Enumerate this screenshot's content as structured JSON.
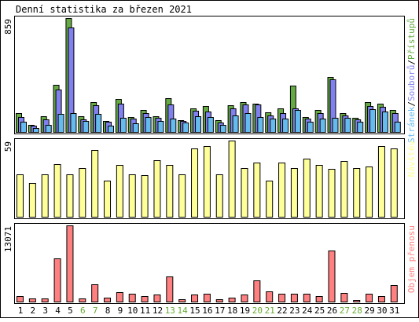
{
  "title": "Denní statistika za březen 2021",
  "colors": {
    "hits": "#66aa44",
    "files": "#8080ee",
    "pages": "#66bbee",
    "visits": "#ffff99",
    "traffic": "#ff8080",
    "weekday_label": "#000000",
    "weekend_label": "#66aa33",
    "border": "#000000",
    "background": "#ffffff"
  },
  "chart_data": [
    {
      "type": "bar",
      "panel": "top",
      "max_label": "859",
      "ylim": [
        0,
        859
      ],
      "legend": [
        {
          "key": "pages",
          "text": "Stránek"
        },
        {
          "sep": "/"
        },
        {
          "key": "files",
          "text": "Souborů"
        },
        {
          "sep": "/"
        },
        {
          "key": "hits",
          "text": "Přístupů"
        }
      ],
      "categories": [
        "1",
        "2",
        "3",
        "4",
        "5",
        "6",
        "7",
        "8",
        "9",
        "10",
        "11",
        "12",
        "13",
        "14",
        "15",
        "16",
        "17",
        "18",
        "19",
        "20",
        "21",
        "22",
        "23",
        "24",
        "25",
        "26",
        "27",
        "28",
        "29",
        "30",
        "31"
      ],
      "weekend": [
        false,
        false,
        false,
        false,
        false,
        true,
        true,
        false,
        false,
        false,
        false,
        false,
        true,
        true,
        false,
        false,
        false,
        false,
        false,
        true,
        true,
        false,
        false,
        false,
        false,
        false,
        true,
        true,
        false,
        false,
        false
      ],
      "series": [
        {
          "name": "Přístupů",
          "key": "hits",
          "values": [
            145,
            55,
            120,
            355,
            859,
            120,
            225,
            85,
            250,
            110,
            165,
            120,
            255,
            90,
            180,
            195,
            90,
            200,
            225,
            215,
            150,
            175,
            350,
            110,
            165,
            415,
            145,
            105,
            225,
            215,
            165
          ]
        },
        {
          "name": "Souborů",
          "key": "files",
          "values": [
            115,
            45,
            95,
            320,
            790,
            95,
            200,
            75,
            215,
            100,
            140,
            105,
            210,
            80,
            160,
            155,
            70,
            180,
            210,
            210,
            125,
            145,
            175,
            100,
            145,
            395,
            125,
            95,
            195,
            190,
            140
          ]
        },
        {
          "name": "Stránek",
          "key": "pages",
          "values": [
            75,
            30,
            55,
            135,
            145,
            85,
            135,
            50,
            105,
            65,
            110,
            85,
            100,
            70,
            120,
            115,
            55,
            125,
            140,
            115,
            100,
            100,
            165,
            75,
            100,
            105,
            105,
            75,
            170,
            155,
            75
          ]
        }
      ]
    },
    {
      "type": "bar",
      "panel": "middle",
      "max_label": "59",
      "ylim": [
        0,
        59
      ],
      "legend": [
        {
          "key": "visits",
          "text": "Návštěv"
        }
      ],
      "categories": [
        "1",
        "2",
        "3",
        "4",
        "5",
        "6",
        "7",
        "8",
        "9",
        "10",
        "11",
        "12",
        "13",
        "14",
        "15",
        "16",
        "17",
        "18",
        "19",
        "20",
        "21",
        "22",
        "23",
        "24",
        "25",
        "26",
        "27",
        "28",
        "29",
        "30",
        "31"
      ],
      "series": [
        {
          "name": "Návštěv",
          "key": "visits",
          "values": [
            33,
            26,
            33,
            41,
            33,
            38,
            52,
            28,
            40,
            33,
            32,
            44,
            40,
            33,
            53,
            55,
            33,
            59,
            38,
            42,
            28,
            42,
            38,
            45,
            40,
            37,
            43,
            38,
            39,
            55,
            53
          ]
        }
      ]
    },
    {
      "type": "bar",
      "panel": "bottom",
      "max_label": "13071",
      "ylim": [
        0,
        13071
      ],
      "legend": [
        {
          "key": "traffic",
          "text": "Objem přenosu"
        }
      ],
      "categories": [
        "1",
        "2",
        "3",
        "4",
        "5",
        "6",
        "7",
        "8",
        "9",
        "10",
        "11",
        "12",
        "13",
        "14",
        "15",
        "16",
        "17",
        "18",
        "19",
        "20",
        "21",
        "22",
        "23",
        "24",
        "25",
        "26",
        "27",
        "28",
        "29",
        "30",
        "31"
      ],
      "series": [
        {
          "name": "Objem přenosu",
          "key": "traffic",
          "values": [
            900,
            600,
            500,
            7400,
            13071,
            500,
            3000,
            700,
            1600,
            1400,
            900,
            1200,
            4300,
            400,
            1200,
            1300,
            400,
            700,
            1200,
            3600,
            1700,
            1300,
            1300,
            1300,
            900,
            8800,
            1500,
            300,
            1300,
            1000,
            2800
          ]
        }
      ]
    }
  ]
}
